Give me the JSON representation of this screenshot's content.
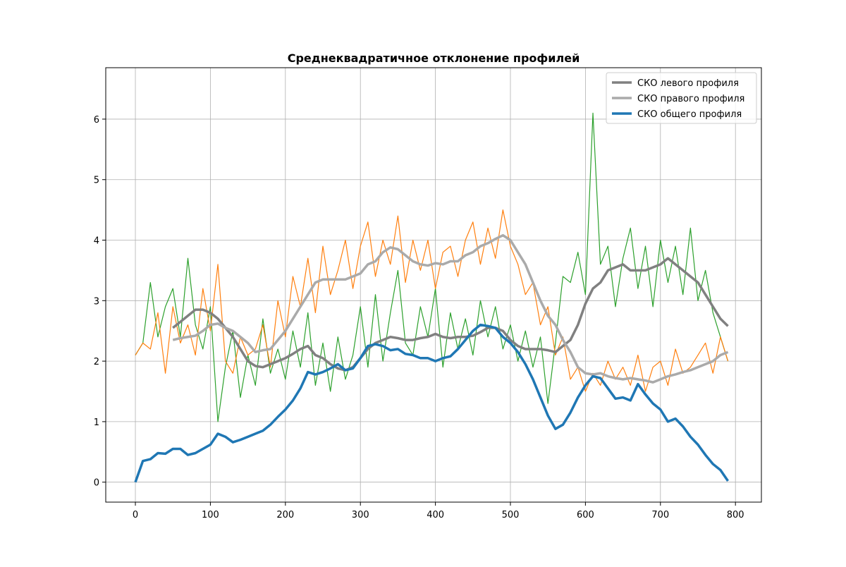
{
  "chart_data": {
    "type": "line",
    "title": "Среднеквадратичное отклонение профилей",
    "x": [
      0,
      10,
      20,
      30,
      40,
      50,
      60,
      70,
      80,
      90,
      100,
      110,
      120,
      130,
      140,
      150,
      160,
      170,
      180,
      190,
      200,
      210,
      220,
      230,
      240,
      250,
      260,
      270,
      280,
      290,
      300,
      310,
      320,
      330,
      340,
      350,
      360,
      370,
      380,
      390,
      400,
      410,
      420,
      430,
      440,
      450,
      460,
      470,
      480,
      490,
      500,
      510,
      520,
      530,
      540,
      550,
      560,
      570,
      580,
      590,
      600,
      610,
      620,
      630,
      640,
      650,
      660,
      670,
      680,
      690,
      700,
      710,
      720,
      730,
      740,
      750,
      760,
      770,
      780,
      790
    ],
    "series": [
      {
        "color": "#2ca02c",
        "width": 1.2,
        "values": [
          2.1,
          2.3,
          3.3,
          2.4,
          2.9,
          3.2,
          2.4,
          3.7,
          2.6,
          2.2,
          2.9,
          1.0,
          1.9,
          2.5,
          1.4,
          2.1,
          1.6,
          2.7,
          1.8,
          2.2,
          1.7,
          2.5,
          1.9,
          2.8,
          1.6,
          2.3,
          1.5,
          2.4,
          1.7,
          2.1,
          2.9,
          1.9,
          3.1,
          2.0,
          2.8,
          3.5,
          2.3,
          2.1,
          2.9,
          2.4,
          3.2,
          1.9,
          2.8,
          2.2,
          2.7,
          2.1,
          3.0,
          2.4,
          2.9,
          2.2,
          2.6,
          2.0,
          2.5,
          1.9,
          2.4,
          1.3,
          2.3,
          3.4,
          3.3,
          3.8,
          3.1,
          6.1,
          3.6,
          3.9,
          2.9,
          3.7,
          4.2,
          3.2,
          3.9,
          2.9,
          4.0,
          3.3,
          3.9,
          3.1,
          4.2,
          3.0,
          3.5,
          2.8,
          2.4,
          2.0
        ]
      },
      {
        "color": "#ff7f0e",
        "width": 1.2,
        "values": [
          2.1,
          2.3,
          2.2,
          2.8,
          1.8,
          2.9,
          2.3,
          2.6,
          2.1,
          3.2,
          2.5,
          3.6,
          2.0,
          1.8,
          2.4,
          2.1,
          2.2,
          2.6,
          1.9,
          3.0,
          2.4,
          3.4,
          2.9,
          3.7,
          2.8,
          3.9,
          3.1,
          3.5,
          4.0,
          3.2,
          3.9,
          4.3,
          3.4,
          4.0,
          3.6,
          4.4,
          3.3,
          4.0,
          3.5,
          4.0,
          3.2,
          3.8,
          3.9,
          3.4,
          4.0,
          4.3,
          3.6,
          4.2,
          3.7,
          4.5,
          3.9,
          3.6,
          3.1,
          3.3,
          2.6,
          2.9,
          2.1,
          2.4,
          1.7,
          1.9,
          1.5,
          1.8,
          1.6,
          2.0,
          1.7,
          1.9,
          1.6,
          2.1,
          1.5,
          1.9,
          2.0,
          1.6,
          2.2,
          1.8,
          1.9,
          2.1,
          2.3,
          1.8,
          2.4,
          2.0
        ]
      },
      {
        "name": "СКО левого профиля",
        "color": "#808080",
        "width": 3.5,
        "values": [
          null,
          null,
          null,
          null,
          null,
          2.55,
          2.65,
          2.75,
          2.85,
          2.85,
          2.8,
          2.7,
          2.55,
          2.4,
          2.2,
          2.0,
          1.92,
          1.9,
          1.95,
          2.0,
          2.05,
          2.12,
          2.2,
          2.25,
          2.1,
          2.05,
          1.95,
          1.88,
          1.85,
          1.9,
          2.05,
          2.2,
          2.3,
          2.35,
          2.4,
          2.38,
          2.35,
          2.35,
          2.38,
          2.4,
          2.45,
          2.4,
          2.38,
          2.4,
          2.4,
          2.42,
          2.48,
          2.55,
          2.55,
          2.5,
          2.35,
          2.25,
          2.2,
          2.2,
          2.2,
          2.18,
          2.15,
          2.25,
          2.35,
          2.6,
          2.95,
          3.2,
          3.3,
          3.5,
          3.55,
          3.6,
          3.5,
          3.5,
          3.5,
          3.55,
          3.6,
          3.7,
          3.6,
          3.5,
          3.4,
          3.3,
          3.1,
          2.9,
          2.7,
          2.58
        ]
      },
      {
        "name": "СКО правого профиля",
        "color": "#aaaaaa",
        "width": 3.5,
        "values": [
          null,
          null,
          null,
          null,
          null,
          2.35,
          2.38,
          2.4,
          2.42,
          2.5,
          2.6,
          2.62,
          2.55,
          2.5,
          2.4,
          2.3,
          2.15,
          2.18,
          2.2,
          2.35,
          2.5,
          2.7,
          2.9,
          3.1,
          3.3,
          3.35,
          3.35,
          3.35,
          3.35,
          3.4,
          3.45,
          3.6,
          3.65,
          3.8,
          3.88,
          3.85,
          3.75,
          3.65,
          3.6,
          3.58,
          3.62,
          3.6,
          3.65,
          3.65,
          3.75,
          3.8,
          3.9,
          3.95,
          4.02,
          4.08,
          4.0,
          3.8,
          3.6,
          3.3,
          3.0,
          2.75,
          2.6,
          2.35,
          2.15,
          1.9,
          1.8,
          1.78,
          1.8,
          1.75,
          1.72,
          1.7,
          1.72,
          1.7,
          1.68,
          1.65,
          1.7,
          1.75,
          1.78,
          1.82,
          1.85,
          1.9,
          1.95,
          2.0,
          2.1,
          2.15
        ]
      },
      {
        "name": "СКО общего профиля",
        "color": "#1f77b4",
        "width": 3.5,
        "values": [
          0.0,
          0.35,
          0.38,
          0.48,
          0.47,
          0.55,
          0.55,
          0.45,
          0.48,
          0.55,
          0.62,
          0.8,
          0.75,
          0.66,
          0.7,
          0.75,
          0.8,
          0.85,
          0.95,
          1.08,
          1.2,
          1.35,
          1.55,
          1.82,
          1.78,
          1.82,
          1.88,
          1.95,
          1.85,
          1.88,
          2.05,
          2.25,
          2.28,
          2.25,
          2.18,
          2.2,
          2.12,
          2.1,
          2.05,
          2.05,
          2.0,
          2.05,
          2.08,
          2.2,
          2.35,
          2.5,
          2.6,
          2.58,
          2.55,
          2.4,
          2.3,
          2.15,
          1.95,
          1.7,
          1.4,
          1.1,
          0.88,
          0.95,
          1.15,
          1.4,
          1.6,
          1.75,
          1.72,
          1.55,
          1.38,
          1.4,
          1.35,
          1.62,
          1.45,
          1.3,
          1.2,
          1.0,
          1.05,
          0.92,
          0.75,
          0.62,
          0.45,
          0.3,
          0.2,
          0.02
        ]
      }
    ],
    "xlim": [
      -39.5,
      834.6
    ],
    "ylim": [
      -0.33,
      6.85
    ],
    "xticks": [
      0,
      100,
      200,
      300,
      400,
      500,
      600,
      700,
      800
    ],
    "yticks": [
      0,
      1,
      2,
      3,
      4,
      5,
      6
    ],
    "grid": true,
    "legend": "upper right"
  }
}
